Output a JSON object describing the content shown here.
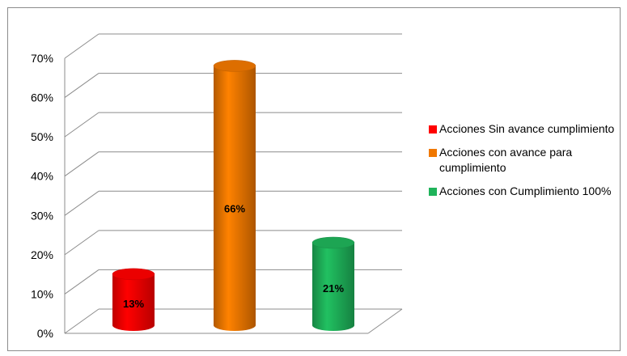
{
  "chart_data": {
    "type": "bar",
    "style": "3d-cylinder",
    "categories": [
      "Acciones Sin avance cumplimiento",
      "Acciones con avance para cumplimiento",
      "Acciones con  Cumplimiento 100%"
    ],
    "values": [
      0.13,
      0.66,
      0.21
    ],
    "data_labels": [
      "13%",
      "66%",
      "21%"
    ],
    "colors": [
      "#ff0000",
      "#f07800",
      "#1fb35a"
    ],
    "yticks": [
      "0%",
      "10%",
      "20%",
      "30%",
      "40%",
      "50%",
      "60%",
      "70%"
    ],
    "ylim": [
      0,
      0.7
    ],
    "grid": true,
    "legend_position": "right",
    "legend": [
      {
        "label": "Acciones Sin avance cumplimiento",
        "color": "#ff0000"
      },
      {
        "label": "Acciones con avance para cumplimiento",
        "color": "#f07800"
      },
      {
        "label": "Acciones con  Cumplimiento 100%",
        "color": "#1fb35a"
      }
    ]
  }
}
